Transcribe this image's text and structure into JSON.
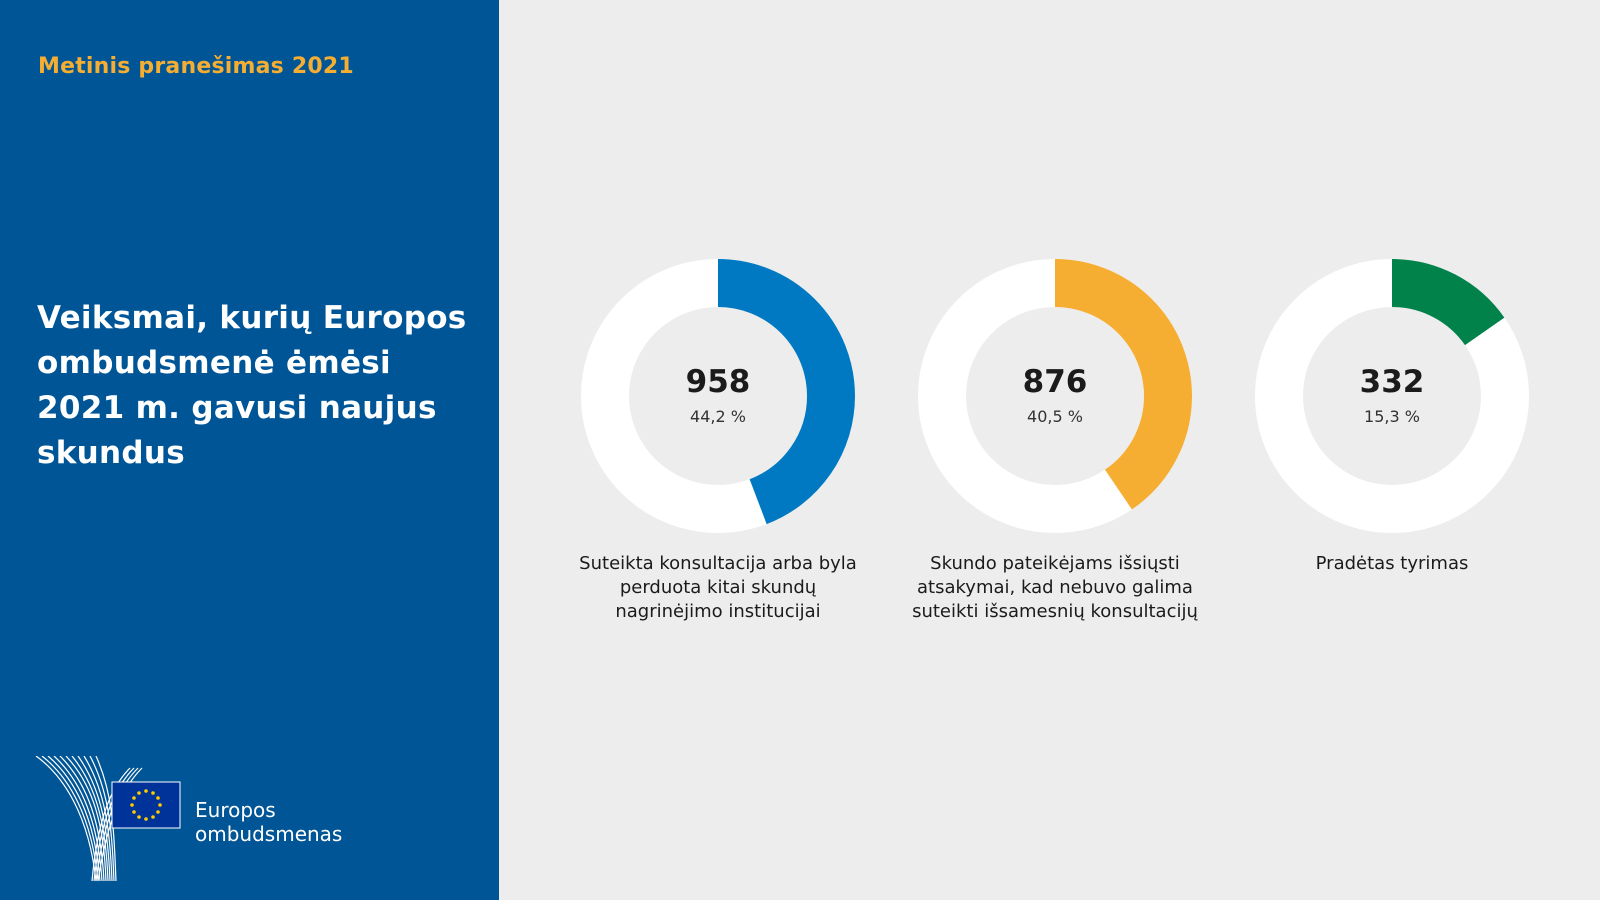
{
  "sidebar": {
    "report_label": "Metinis pranešimas 2021",
    "headline": "Veiksmai, kurių Europos ombudsmenė ėmėsi 2021 m. gavusi naujus skundus",
    "logo": {
      "icon": "european-ombudsman-logo",
      "line1": "Europos",
      "line2": "ombudsmenas"
    }
  },
  "colors": {
    "sidebar_bg": "#005596",
    "accent_yellow": "#f5ad32",
    "page_bg": "#ededed",
    "blue": "#0079c2",
    "orange": "#f5ad32",
    "green": "#00824a",
    "track": "#ffffff"
  },
  "chart_data": {
    "type": "pie",
    "series": [
      {
        "name": "Suteikta konsultacija arba byla perduota kitai skundų nagrinėjimo institucijai",
        "value": 958,
        "percent": 44.2,
        "value_label": "958",
        "percent_label": "44,2 %",
        "color": "#0079c2"
      },
      {
        "name": "Skundo pateikėjams išsiųsti atsakymai, kad nebuvo galima suteikti išsamesnių konsultacijų",
        "value": 876,
        "percent": 40.5,
        "value_label": "876",
        "percent_label": "40,5 %",
        "color": "#f5ad32"
      },
      {
        "name": "Pradėtas tyrimas",
        "value": 332,
        "percent": 15.3,
        "value_label": "332",
        "percent_label": "15,3 %",
        "color": "#00824a"
      }
    ]
  }
}
